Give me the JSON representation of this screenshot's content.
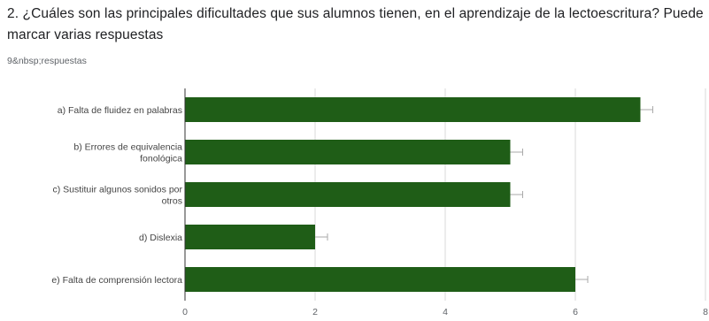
{
  "question": {
    "title": "2. ¿Cuáles son las principales dificultades que sus alumnos tienen, en el aprendizaje de la lectoescritura? Puede marcar varias respuestas",
    "response_count": "9&nbsp;respuestas"
  },
  "chart_data": {
    "type": "bar",
    "orientation": "horizontal",
    "categories": [
      [
        "a) Falta de fluidez en palabras"
      ],
      [
        "b) Errores de equivalencia",
        "fonológica"
      ],
      [
        "c) Sustituir algunos sonidos por",
        "otros"
      ],
      [
        "d) Dislexia"
      ],
      [
        "e) Falta de comprensión lectora"
      ]
    ],
    "values": [
      7,
      5,
      5,
      2,
      6
    ],
    "xlim": [
      0,
      8
    ],
    "ticks": [
      "0",
      "2",
      "4",
      "6",
      "8"
    ],
    "grid": true,
    "bar_color": "#1f5d17",
    "grid_color": "#d9d9d9",
    "axis_color": "#333333"
  }
}
